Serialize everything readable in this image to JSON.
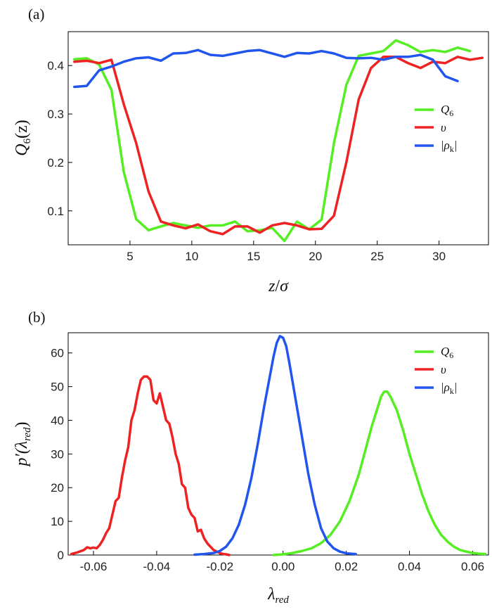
{
  "chart_data": [
    {
      "id": "a",
      "type": "line",
      "panel_label": "(a)",
      "xlabel_main": "z",
      "xlabel_sep": "/",
      "xlabel_sym": "σ",
      "ylabel_main": "Q",
      "ylabel_sub": "6",
      "ylabel_rest": "(z)",
      "xlim": [
        0,
        34
      ],
      "ylim": [
        0.03,
        0.47
      ],
      "xticks": [
        5,
        10,
        15,
        20,
        25,
        30
      ],
      "xtick_labels": [
        "5",
        "10",
        "15",
        "20",
        "25",
        "30"
      ],
      "yticks": [
        0.1,
        0.2,
        0.3,
        0.4
      ],
      "ytick_labels": [
        "0.1",
        "0.2",
        "0.3",
        "0.4"
      ],
      "legend_position": "right",
      "series": [
        {
          "key": "q6",
          "color": "#55ee22",
          "legend_main": "Q",
          "legend_sub": "6",
          "legend_text": "Q6",
          "x": [
            0.5,
            1.5,
            2.5,
            3.5,
            4.5,
            5.5,
            6.5,
            7.5,
            8.5,
            9.5,
            10.5,
            11.5,
            12.5,
            13.5,
            14.5,
            15.5,
            16.5,
            17.5,
            18.5,
            19.5,
            20.5,
            21.5,
            22.5,
            23.5,
            24.5,
            25.5,
            26.5,
            27.5,
            28.5,
            29.5,
            30.5,
            31.5,
            32.5
          ],
          "y": [
            0.413,
            0.415,
            0.402,
            0.35,
            0.18,
            0.083,
            0.06,
            0.068,
            0.075,
            0.07,
            0.065,
            0.07,
            0.07,
            0.078,
            0.058,
            0.06,
            0.065,
            0.038,
            0.078,
            0.062,
            0.082,
            0.24,
            0.36,
            0.42,
            0.425,
            0.43,
            0.452,
            0.442,
            0.428,
            0.432,
            0.428,
            0.437,
            0.43
          ]
        },
        {
          "key": "upsilon",
          "color": "#ee2222",
          "legend_main": "υ",
          "legend_sub": "",
          "legend_text": "υ",
          "x": [
            0.5,
            1.5,
            2.5,
            3.5,
            4.5,
            5.5,
            6.5,
            7.5,
            8.5,
            9.5,
            10.5,
            11.5,
            12.5,
            13.5,
            14.5,
            15.5,
            16.5,
            17.5,
            18.5,
            19.5,
            20.5,
            21.5,
            22.5,
            23.5,
            24.5,
            25.5,
            26.5,
            27.5,
            28.5,
            29.5,
            30.5,
            31.5,
            32.5,
            33.5
          ],
          "y": [
            0.408,
            0.41,
            0.405,
            0.412,
            0.32,
            0.24,
            0.14,
            0.078,
            0.07,
            0.064,
            0.072,
            0.058,
            0.052,
            0.068,
            0.068,
            0.055,
            0.07,
            0.075,
            0.07,
            0.062,
            0.063,
            0.09,
            0.2,
            0.33,
            0.395,
            0.418,
            0.418,
            0.405,
            0.395,
            0.408,
            0.405,
            0.418,
            0.412,
            0.416
          ]
        },
        {
          "key": "rho",
          "color": "#2255ee",
          "legend_main": "|ρ",
          "legend_sub": "k",
          "legend_text": "|ρk|",
          "x": [
            0.5,
            1.5,
            2.5,
            3.5,
            4.5,
            5.5,
            6.5,
            7.5,
            8.5,
            9.5,
            10.5,
            11.5,
            12.5,
            13.5,
            14.5,
            15.5,
            16.5,
            17.5,
            18.5,
            19.5,
            20.5,
            21.5,
            22.5,
            23.5,
            24.5,
            25.5,
            26.5,
            27.5,
            28.5,
            29.5,
            30.5,
            31.5
          ],
          "y": [
            0.356,
            0.358,
            0.39,
            0.398,
            0.408,
            0.415,
            0.417,
            0.41,
            0.425,
            0.426,
            0.432,
            0.422,
            0.42,
            0.425,
            0.43,
            0.432,
            0.425,
            0.418,
            0.426,
            0.425,
            0.43,
            0.425,
            0.416,
            0.415,
            0.416,
            0.412,
            0.418,
            0.418,
            0.422,
            0.412,
            0.378,
            0.368
          ]
        }
      ]
    },
    {
      "id": "b",
      "type": "line",
      "panel_label": "(b)",
      "xlabel_main": "λ",
      "xlabel_sub": "red",
      "ylabel_main": "p′(λ",
      "ylabel_sub": "red",
      "ylabel_rest": ")",
      "xlim": [
        -0.068,
        0.065
      ],
      "ylim": [
        0,
        66
      ],
      "xticks": [
        -0.06,
        -0.04,
        -0.02,
        0.0,
        0.02,
        0.04,
        0.06
      ],
      "xtick_labels": [
        "-0.06",
        "-0.04",
        "-0.02",
        "0.00",
        "0.02",
        "0.04",
        "0.06"
      ],
      "yticks": [
        0,
        10,
        20,
        30,
        40,
        50,
        60
      ],
      "ytick_labels": [
        "0",
        "10",
        "20",
        "30",
        "40",
        "50",
        "60"
      ],
      "legend_position": "top-right",
      "series": [
        {
          "key": "q6",
          "color": "#55ee22",
          "legend_main": "Q",
          "legend_sub": "6",
          "legend_text": "Q6",
          "x": [
            -0.003,
            0.0,
            0.003,
            0.006,
            0.009,
            0.012,
            0.015,
            0.018,
            0.021,
            0.024,
            0.026,
            0.028,
            0.03,
            0.031,
            0.032,
            0.033,
            0.034,
            0.036,
            0.038,
            0.04,
            0.042,
            0.044,
            0.046,
            0.048,
            0.05,
            0.052,
            0.054,
            0.056,
            0.058,
            0.06,
            0.062,
            0.064
          ],
          "y": [
            0,
            0.2,
            0.6,
            1.2,
            2,
            3.5,
            6,
            10,
            16,
            24,
            31,
            38,
            44,
            47,
            48.5,
            48.5,
            47,
            43,
            37,
            30,
            24,
            18,
            13,
            9,
            6,
            4,
            2.5,
            1.5,
            1,
            0.6,
            0.4,
            0.3
          ]
        },
        {
          "key": "upsilon",
          "color": "#ee2222",
          "legend_main": "υ",
          "legend_sub": "",
          "legend_text": "υ",
          "x": [
            -0.067,
            -0.065,
            -0.063,
            -0.062,
            -0.061,
            -0.06,
            -0.059,
            -0.058,
            -0.057,
            -0.056,
            -0.055,
            -0.054,
            -0.053,
            -0.052,
            -0.051,
            -0.05,
            -0.049,
            -0.048,
            -0.047,
            -0.046,
            -0.045,
            -0.044,
            -0.043,
            -0.042,
            -0.041,
            -0.04,
            -0.039,
            -0.038,
            -0.037,
            -0.036,
            -0.035,
            -0.034,
            -0.033,
            -0.032,
            -0.031,
            -0.03,
            -0.029,
            -0.028,
            -0.027,
            -0.026,
            -0.025,
            -0.024,
            -0.023,
            -0.022,
            -0.021,
            -0.02,
            -0.019,
            -0.018,
            -0.017
          ],
          "y": [
            0.3,
            0.8,
            1.5,
            2.3,
            2,
            2.2,
            2,
            3,
            4.5,
            6.5,
            8,
            12,
            16,
            17,
            23,
            28,
            32,
            40,
            43,
            48,
            52,
            53,
            53,
            52,
            46,
            45,
            48,
            44,
            40,
            39,
            35,
            30,
            27,
            21,
            20,
            14,
            12,
            11,
            7,
            7.5,
            5,
            3.5,
            2.5,
            1.5,
            1,
            0.6,
            0.3,
            0.2,
            0
          ]
        },
        {
          "key": "rho",
          "color": "#2255ee",
          "legend_main": "|ρ",
          "legend_sub": "k",
          "legend_text": "|ρk|",
          "x": [
            -0.028,
            -0.025,
            -0.022,
            -0.02,
            -0.018,
            -0.016,
            -0.014,
            -0.012,
            -0.01,
            -0.008,
            -0.006,
            -0.004,
            -0.003,
            -0.002,
            -0.001,
            0.0,
            0.001,
            0.002,
            0.004,
            0.006,
            0.008,
            0.01,
            0.012,
            0.014,
            0.016,
            0.018,
            0.02,
            0.023
          ],
          "y": [
            0.1,
            0.3,
            0.6,
            1.2,
            2.5,
            5,
            9,
            15,
            23,
            33,
            44,
            54,
            59,
            63,
            65,
            64.5,
            62,
            57,
            46,
            35,
            24,
            15,
            8,
            4,
            2,
            1,
            0.5,
            0.3
          ]
        }
      ]
    }
  ]
}
